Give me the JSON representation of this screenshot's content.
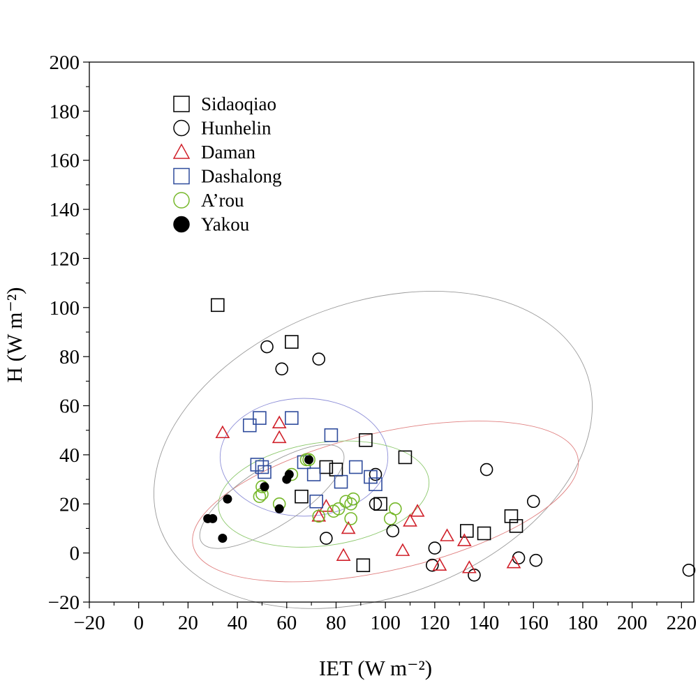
{
  "chart_data": {
    "type": "scatter",
    "title": "",
    "xlabel": "IET (W m⁻²)",
    "ylabel": "H (W m⁻²)",
    "xlim": [
      -20,
      225
    ],
    "ylim": [
      -20,
      200
    ],
    "xticks": [
      -20,
      0,
      20,
      40,
      60,
      80,
      100,
      120,
      140,
      160,
      180,
      200,
      220
    ],
    "yticks": [
      -20,
      0,
      20,
      40,
      60,
      80,
      100,
      120,
      140,
      160,
      180,
      200
    ],
    "grid": false,
    "legend_position": "top-left",
    "series": [
      {
        "name": "Sidaoqiao",
        "marker": "square",
        "color": "#000000",
        "filled": false,
        "points": [
          [
            32,
            101
          ],
          [
            62,
            86
          ],
          [
            92,
            46
          ],
          [
            108,
            39
          ],
          [
            80,
            34
          ],
          [
            76,
            35
          ],
          [
            66,
            23
          ],
          [
            98,
            20
          ],
          [
            91,
            -5
          ],
          [
            133,
            9
          ],
          [
            140,
            8
          ],
          [
            151,
            15
          ],
          [
            153,
            11
          ]
        ],
        "ellipse": {
          "cx": 95,
          "cy": 42,
          "rx": 92,
          "ry": 60,
          "rotate_deg": -20,
          "color": "#9a9a9a"
        }
      },
      {
        "name": "Hunhelin",
        "marker": "circle",
        "color": "#000000",
        "filled": false,
        "points": [
          [
            52,
            84
          ],
          [
            58,
            75
          ],
          [
            73,
            79
          ],
          [
            96,
            32
          ],
          [
            96,
            20
          ],
          [
            103,
            9
          ],
          [
            76,
            6
          ],
          [
            141,
            34
          ],
          [
            160,
            21
          ],
          [
            120,
            2
          ],
          [
            119,
            -5
          ],
          [
            136,
            -9
          ],
          [
            154,
            -2
          ],
          [
            161,
            -3
          ],
          [
            223,
            -7
          ]
        ],
        "ellipse": null
      },
      {
        "name": "Daman",
        "marker": "triangle",
        "color": "#d0202a",
        "filled": false,
        "points": [
          [
            34,
            49
          ],
          [
            57,
            53
          ],
          [
            57,
            47
          ],
          [
            73,
            15
          ],
          [
            76,
            19
          ],
          [
            85,
            10
          ],
          [
            83,
            -1
          ],
          [
            107,
            1
          ],
          [
            110,
            13
          ],
          [
            113,
            17
          ],
          [
            122,
            -5
          ],
          [
            125,
            7
          ],
          [
            132,
            5
          ],
          [
            134,
            -6
          ],
          [
            152,
            -4
          ]
        ],
        "ellipse": {
          "cx": 100,
          "cy": 21,
          "rx": 80,
          "ry": 28,
          "rotate_deg": -13,
          "color": "#e08080"
        }
      },
      {
        "name": "Dashalong",
        "marker": "square",
        "color": "#2e4b9c",
        "filled": false,
        "points": [
          [
            45,
            52
          ],
          [
            49,
            55
          ],
          [
            62,
            55
          ],
          [
            78,
            48
          ],
          [
            48,
            36
          ],
          [
            50,
            35
          ],
          [
            51,
            33
          ],
          [
            67,
            37
          ],
          [
            71,
            32
          ],
          [
            82,
            29
          ],
          [
            88,
            35
          ],
          [
            94,
            31
          ],
          [
            96,
            28
          ],
          [
            72,
            21
          ]
        ],
        "ellipse": {
          "cx": 67,
          "cy": 39,
          "rx": 34,
          "ry": 24,
          "rotate_deg": 0,
          "color": "#8f90d8"
        }
      },
      {
        "name": "A’rou",
        "marker": "circle",
        "color": "#76b82a",
        "filled": false,
        "points": [
          [
            49,
            23
          ],
          [
            50,
            27
          ],
          [
            50,
            24
          ],
          [
            57,
            20
          ],
          [
            62,
            32
          ],
          [
            68,
            38
          ],
          [
            69,
            38
          ],
          [
            73,
            15
          ],
          [
            79,
            17
          ],
          [
            81,
            18
          ],
          [
            84,
            21
          ],
          [
            86,
            20
          ],
          [
            87,
            22
          ],
          [
            86,
            14
          ],
          [
            102,
            14
          ],
          [
            104,
            18
          ]
        ],
        "ellipse": {
          "cx": 75,
          "cy": 24,
          "rx": 43,
          "ry": 21,
          "rotate_deg": -8,
          "color": "#8cc86c"
        }
      },
      {
        "name": "Yakou",
        "marker": "circle",
        "color": "#000000",
        "filled": true,
        "points": [
          [
            28,
            14
          ],
          [
            30,
            14
          ],
          [
            34,
            6
          ],
          [
            36,
            22
          ],
          [
            51,
            27
          ],
          [
            57,
            18
          ],
          [
            60,
            30
          ],
          [
            61,
            32
          ],
          [
            69,
            38
          ]
        ],
        "ellipse": {
          "cx": 54,
          "cy": 23,
          "rx": 34,
          "ry": 12,
          "rotate_deg": -33,
          "color": "#9a9a9a"
        }
      }
    ]
  }
}
